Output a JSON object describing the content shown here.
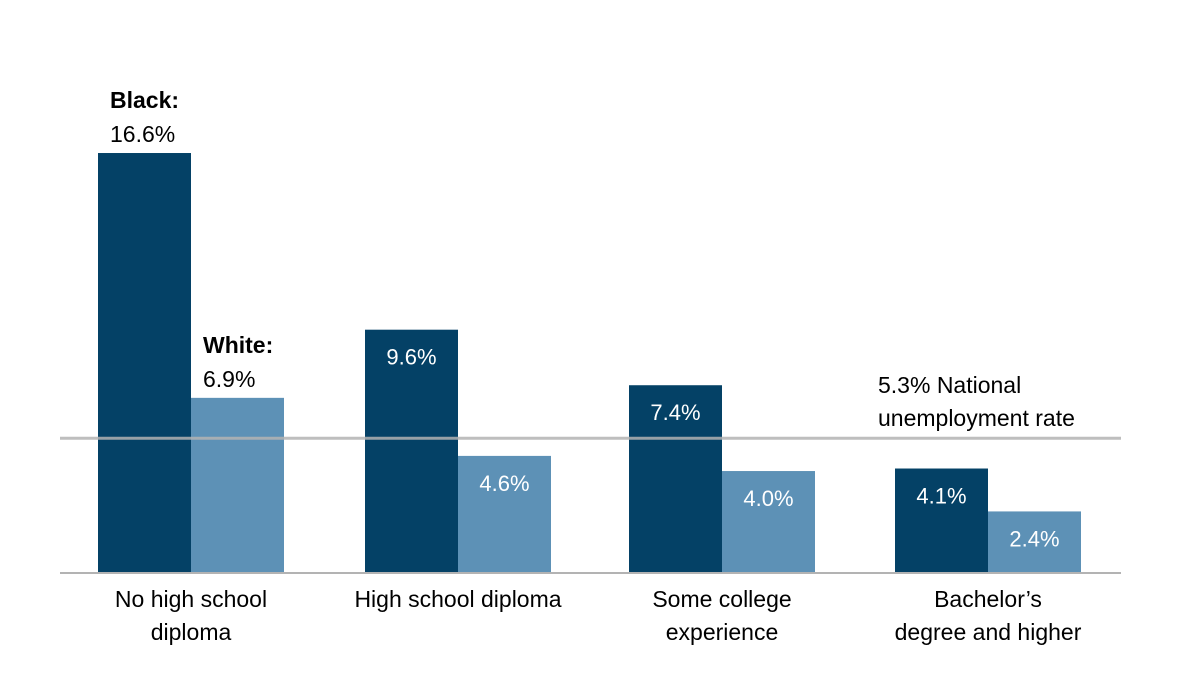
{
  "chart_data": {
    "type": "bar",
    "categories": [
      [
        "No high school",
        "diploma"
      ],
      [
        "High school diploma"
      ],
      [
        "Some college",
        "experience"
      ],
      [
        "Bachelor’s",
        "degree and higher"
      ]
    ],
    "series": [
      {
        "name": "Black:",
        "values": [
          16.6,
          9.6,
          7.4,
          4.1
        ],
        "labels": [
          "16.6%",
          "9.6%",
          "7.4%",
          "4.1%"
        ]
      },
      {
        "name": "White:",
        "values": [
          6.9,
          4.6,
          4.0,
          2.4
        ],
        "labels": [
          "6.9%",
          "4.6%",
          "4.0%",
          "2.4%"
        ]
      }
    ],
    "reference_line": {
      "value": 5.3,
      "label_lines": [
        "5.3% National",
        "unemployment rate"
      ]
    },
    "ylim": [
      0,
      18
    ],
    "grid": false,
    "colors": {
      "black": "#044166",
      "white": "#5d91b6",
      "reference": "#b3b3b3",
      "axis": "#b3b3b3",
      "text": "#000000",
      "inside_label": "#ffffff"
    }
  }
}
